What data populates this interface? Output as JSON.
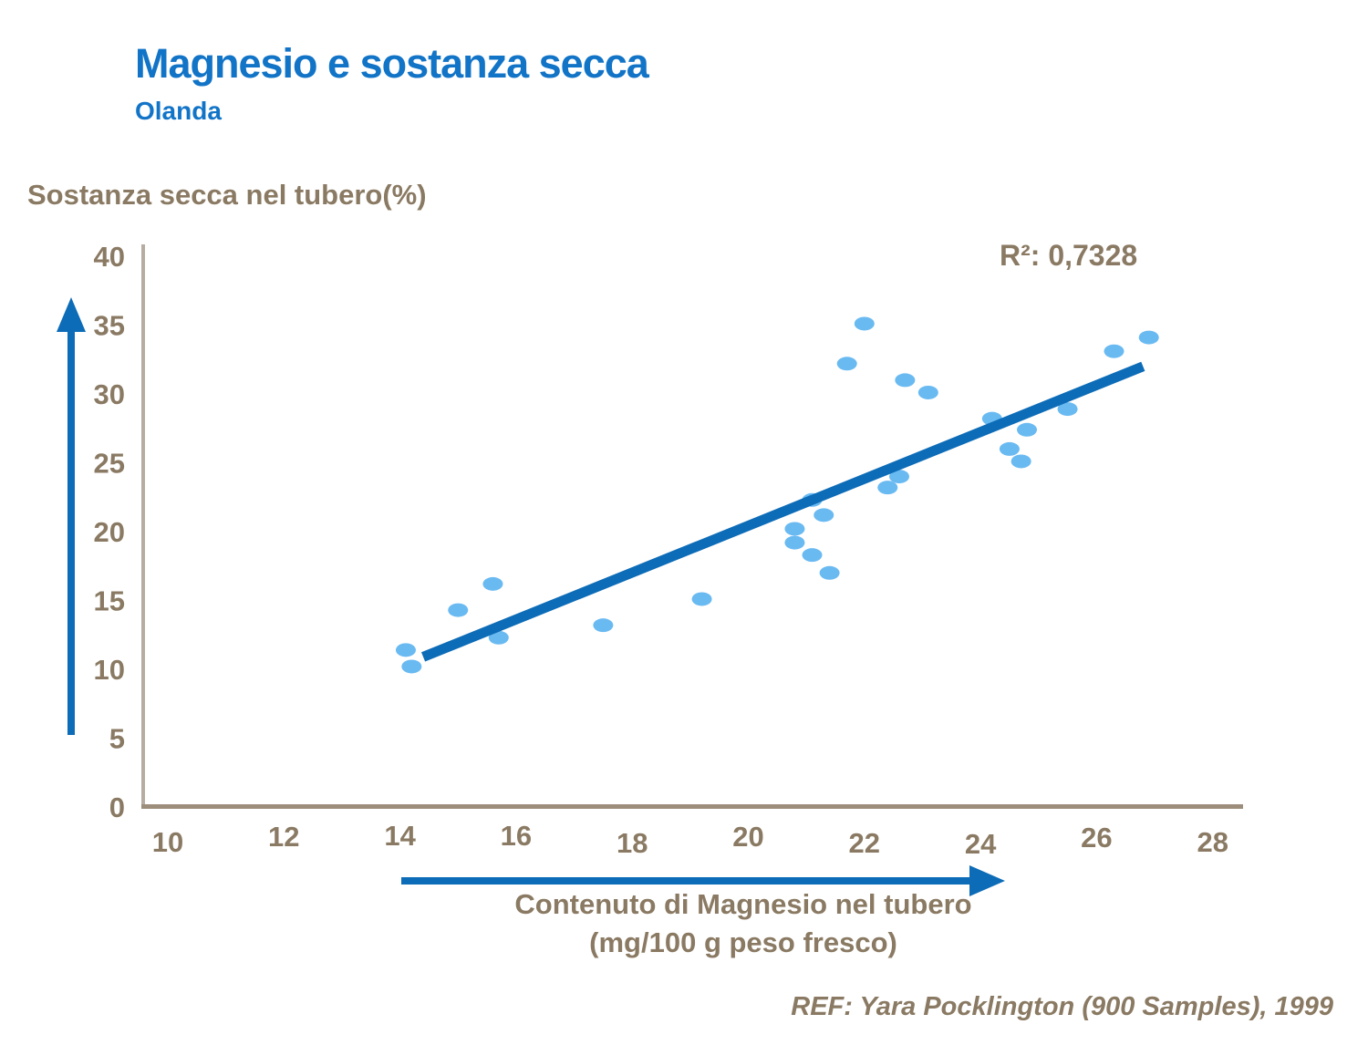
{
  "header": {
    "title": "Magnesio e sostanza secca",
    "subtitle": "Olanda"
  },
  "chart": {
    "y_axis_title": "Sostanza secca nel tubero(%)",
    "r_squared_label": "R²: 0,7328",
    "x_axis_title_line1": "Contenuto di Magnesio nel tubero",
    "x_axis_title_line2": "(mg/100 g peso fresco)"
  },
  "footer": {
    "reference": "REF: Yara Pocklington (900 Samples), 1999"
  },
  "colors": {
    "title_blue": "#1274C7",
    "accent_blue": "#0D6CB7",
    "point_blue": "#6ABAF2",
    "text_brown": "#8A7A63",
    "axis_vertical": "#B7ACA2",
    "axis_horizontal": "#9D8E7C"
  },
  "chart_data": {
    "type": "scatter",
    "title": "Magnesio e sostanza secca — Olanda",
    "xlabel": "Contenuto di Magnesio nel tubero (mg/100 g peso fresco)",
    "ylabel": "Sostanza secca nel tubero(%)",
    "xlim": [
      10,
      28
    ],
    "ylim": [
      0,
      40
    ],
    "x_ticks": [
      10,
      12,
      14,
      16,
      18,
      20,
      22,
      24,
      26,
      28
    ],
    "y_ticks": [
      0,
      5,
      10,
      15,
      20,
      25,
      30,
      35,
      40
    ],
    "grid": false,
    "legend": "none",
    "r_squared": 0.7328,
    "points": [
      [
        14.1,
        11.4
      ],
      [
        14.2,
        10.2
      ],
      [
        15.0,
        14.3
      ],
      [
        15.6,
        16.2
      ],
      [
        15.7,
        12.3
      ],
      [
        17.5,
        13.2
      ],
      [
        19.2,
        15.1
      ],
      [
        20.8,
        20.2
      ],
      [
        20.8,
        19.2
      ],
      [
        21.1,
        22.3
      ],
      [
        21.3,
        21.2
      ],
      [
        21.1,
        18.3
      ],
      [
        21.4,
        17.0
      ],
      [
        21.7,
        32.2
      ],
      [
        22.0,
        35.1
      ],
      [
        22.4,
        23.2
      ],
      [
        22.6,
        24.0
      ],
      [
        22.7,
        31.0
      ],
      [
        23.1,
        30.1
      ],
      [
        24.2,
        28.2
      ],
      [
        24.5,
        26.0
      ],
      [
        24.8,
        27.4
      ],
      [
        24.7,
        25.1
      ],
      [
        25.5,
        28.9
      ],
      [
        26.3,
        33.1
      ],
      [
        26.9,
        34.1
      ]
    ],
    "trendline": {
      "x1": 14.4,
      "y1": 10.9,
      "x2": 26.8,
      "y2": 32.0
    }
  }
}
